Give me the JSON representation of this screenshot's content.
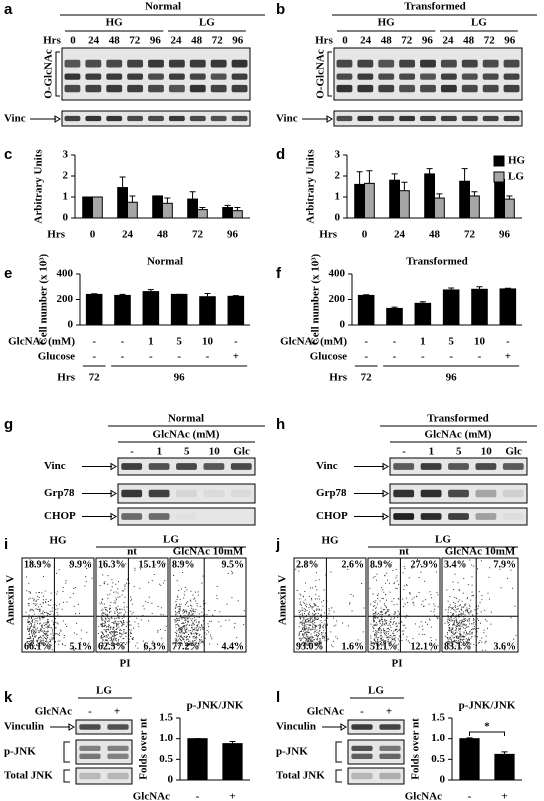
{
  "panels": {
    "a": {
      "letter": "a",
      "title": "Normal",
      "groups": [
        "HG",
        "LG"
      ],
      "hrs_label": "Hrs",
      "lanes": [
        0,
        24,
        48,
        72,
        96,
        24,
        48,
        72,
        96
      ],
      "rows": [
        "O-GlcNAc",
        "Vinc"
      ]
    },
    "b": {
      "letter": "b",
      "title": "Transformed",
      "groups": [
        "HG",
        "LG"
      ],
      "hrs_label": "Hrs",
      "lanes": [
        0,
        24,
        48,
        72,
        96,
        24,
        48,
        72,
        96
      ],
      "rows": [
        "O-GlcNAc",
        "Vinc"
      ]
    },
    "g": {
      "letter": "g",
      "title": "Normal",
      "treatment": "GlcNAc (mM)",
      "lanes": [
        "-",
        1,
        5,
        10,
        "Glc"
      ],
      "rows": [
        "Vinc",
        "Grp78",
        "CHOP"
      ]
    },
    "h": {
      "letter": "h",
      "title": "Transformed",
      "treatment": "GlcNAc (mM)",
      "lanes": [
        "-",
        1,
        5,
        10,
        "Glc"
      ],
      "rows": [
        "Vinc",
        "Grp78",
        "CHOP"
      ]
    },
    "i": {
      "letter": "i",
      "groups": [
        "HG",
        "LG"
      ],
      "conditions": [
        "nt",
        "GlcNAc 10mM"
      ],
      "ylabel": "Annexin V",
      "xlabel": "PI",
      "plots": [
        {
          "ul": "18.9%",
          "ur": "9.9%",
          "ll": "66.1%",
          "lr": "5.1%"
        },
        {
          "ul": "16.3%",
          "ur": "15.1%",
          "ll": "62.3%",
          "lr": "6.3%"
        },
        {
          "ul": "8.9%",
          "ur": "9.5%",
          "ll": "77.2%",
          "lr": "4.4%"
        }
      ]
    },
    "j": {
      "letter": "j",
      "groups": [
        "HG",
        "LG"
      ],
      "conditions": [
        "nt",
        "GlcNAc 10mM"
      ],
      "ylabel": "Annexin V",
      "xlabel": "PI",
      "plots": [
        {
          "ul": "2.8%",
          "ur": "2.6%",
          "ll": "93.0%",
          "lr": "1.6%"
        },
        {
          "ul": "8.9%",
          "ur": "27.9%",
          "ll": "51.1%",
          "lr": "12.1%"
        },
        {
          "ul": "3.4%",
          "ur": "7.9%",
          "ll": "83.1%",
          "lr": "3.6%"
        }
      ]
    },
    "k": {
      "letter": "k",
      "group": "LG",
      "treatment": "GlcNAc",
      "lanes": [
        "-",
        "+"
      ],
      "rows": [
        "Vinculin",
        "p-JNK",
        "Total JNK"
      ]
    },
    "l": {
      "letter": "l",
      "group": "LG",
      "treatment": "GlcNAc",
      "lanes": [
        "-",
        "+"
      ],
      "rows": [
        "Vinculin",
        "p-JNK",
        "Total JNK"
      ]
    }
  },
  "chart_data": [
    {
      "letter": "c",
      "type": "bar",
      "ylabel": "Arbitrary Units",
      "xlabel": "Hrs",
      "categories": [
        0,
        24,
        48,
        72,
        96
      ],
      "series": [
        {
          "color": "#000000",
          "values": [
            1,
            1.45,
            1.05,
            0.9,
            0.5
          ],
          "errors": [
            0,
            0.5,
            0,
            0.35,
            0.1
          ]
        },
        {
          "color": "#a6a6a6",
          "values": [
            1,
            0.75,
            0.7,
            0.4,
            0.35
          ],
          "errors": [
            0,
            0.3,
            0.25,
            0.1,
            0.15
          ]
        }
      ],
      "ylim": [
        0,
        3
      ],
      "yticks": [
        0,
        1,
        2,
        3
      ]
    },
    {
      "letter": "d",
      "type": "bar",
      "ylabel": "Arbitrary Units",
      "xlabel": "Hrs",
      "categories": [
        0,
        24,
        48,
        72,
        96
      ],
      "series": [
        {
          "name": "HG",
          "color": "#000000",
          "values": [
            1.6,
            1.8,
            2.1,
            1.75,
            1.85
          ],
          "errors": [
            0.6,
            0.3,
            0.25,
            0.6,
            0.05
          ]
        },
        {
          "name": "LG",
          "color": "#a6a6a6",
          "values": [
            1.65,
            1.3,
            0.95,
            1.05,
            0.9
          ],
          "errors": [
            0.6,
            0.4,
            0.2,
            0.2,
            0.15
          ]
        }
      ],
      "ylim": [
        0,
        3
      ],
      "yticks": [
        0,
        1,
        2,
        3
      ],
      "legend": "upper right"
    },
    {
      "letter": "e",
      "type": "bar",
      "title": "Normal",
      "ylabel": "Cell number (x 10³)",
      "color": "#000000",
      "values": [
        240,
        232,
        262,
        240,
        222,
        225
      ],
      "errors": [
        5,
        8,
        15,
        0,
        25,
        5
      ],
      "ylim": [
        0,
        400
      ],
      "yticks": [
        0,
        200,
        400
      ],
      "table": {
        "rows": [
          {
            "label": "GlcNAc (mM)",
            "cells": [
              "-",
              "-",
              1,
              5,
              10,
              "-"
            ]
          },
          {
            "label": "Glucose",
            "cells": [
              "-",
              "-",
              "-",
              "-",
              "-",
              "+"
            ]
          }
        ],
        "hrs_label": "Hrs",
        "hrs": [
          72,
          96
        ]
      }
    },
    {
      "letter": "f",
      "type": "bar",
      "title": "Transformed",
      "ylabel": "Cell number (x 10³)",
      "color": "#000000",
      "values": [
        232,
        130,
        170,
        275,
        280,
        283
      ],
      "errors": [
        5,
        10,
        12,
        15,
        20,
        5
      ],
      "ylim": [
        0,
        400
      ],
      "yticks": [
        0,
        200,
        400
      ],
      "table": {
        "rows": [
          {
            "label": "GlcNAc (mM)",
            "cells": [
              "-",
              "-",
              1,
              5,
              10,
              "-"
            ]
          },
          {
            "label": "Glucose",
            "cells": [
              "-",
              "-",
              "-",
              "-",
              "-",
              "+"
            ]
          }
        ],
        "hrs_label": "Hrs",
        "hrs": [
          72,
          96
        ]
      }
    },
    {
      "type": "bar",
      "title": "p-JNK/JNK",
      "ylabel": "Folds over nt",
      "xlabel": "GlcNAc",
      "categories": [
        "-",
        "+"
      ],
      "color": "#000000",
      "values": [
        1,
        0.88
      ],
      "errors": [
        0,
        0.05
      ],
      "ylim": [
        0,
        1.5
      ],
      "yticks": [
        0,
        0.5,
        {
          "value": 1,
          "label": "1.0"
        },
        1.5
      ]
    },
    {
      "type": "bar",
      "title": "p-JNK/JNK",
      "ylabel": "Folds over nt",
      "xlabel": "GlcNAc",
      "categories": [
        "-",
        "+"
      ],
      "color": "#000000",
      "values": [
        1,
        0.62
      ],
      "errors": [
        0.02,
        0.06
      ],
      "ylim": [
        0,
        1.5
      ],
      "yticks": [
        0,
        0.5,
        {
          "value": 1,
          "label": "1.0"
        },
        1.5
      ],
      "annotation": "*"
    }
  ]
}
